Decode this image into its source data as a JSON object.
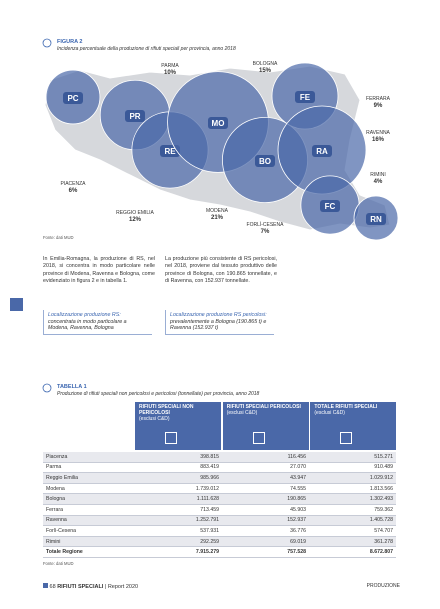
{
  "figure": {
    "label": "FIGURA 2",
    "title": "Incidenza percentuale della produzione di rifiuti speciali per provincia, anno 2018",
    "provinces": [
      {
        "code": "PC",
        "name": "PIACENZA",
        "pct": "6%"
      },
      {
        "code": "PR",
        "name": "PARMA",
        "pct": "10%"
      },
      {
        "code": "RE",
        "name": "REGGIO EMILIA",
        "pct": "12%"
      },
      {
        "code": "MO",
        "name": "MODENA",
        "pct": "21%"
      },
      {
        "code": "BO",
        "name": "BOLOGNA",
        "pct": "15%"
      },
      {
        "code": "FE",
        "name": "FERRARA",
        "pct": "9%"
      },
      {
        "code": "RA",
        "name": "RAVENNA",
        "pct": "16%"
      },
      {
        "code": "FC",
        "name": "FORLÌ-CESENA",
        "pct": "7%"
      },
      {
        "code": "RN",
        "name": "RIMINI",
        "pct": "4%"
      }
    ],
    "source": "Fonte: dati MUD"
  },
  "text": {
    "left": "In Emilia-Romagna, la produzione di RS, nel 2018, si concentra in modo particolare nelle province di Modena, Ravenna e Bologna, come evidenziato in figura 2 e in tabella 1.",
    "right": "La produzione più consistente di RS pericolosi, nel 2018, proviene dal tessuto produttivo delle province di Bologna, con 190.865 tonnellate, e di Ravenna, con 152.937 tonnellate."
  },
  "boxes": [
    {
      "title": "Localizzazione produzione RS:",
      "body": "concentrata in modo particolare a Modena, Ravenna, Bologna"
    },
    {
      "title": "Localizzazione produzione RS pericolosi:",
      "body": "prevalentemente a Bologna (190.865 t) e Ravenna (152.937 t)"
    }
  ],
  "table": {
    "label": "TABELLA 1",
    "title": "Produzione di rifiuti speciali non pericolosi e pericolosi (tonnellate) per provincia, anno 2018",
    "columns": [
      {
        "title": "RIFIUTI SPECIALI NON PERICOLOSI",
        "note": "(esclusi C&D)"
      },
      {
        "title": "RIFIUTI SPECIALI PERICOLOSI",
        "note": "(esclusi C&D)"
      },
      {
        "title": "TOTALE RIFIUTI SPECIALI",
        "note": "(esclusi C&D)"
      }
    ],
    "rows": [
      [
        "Piacenza",
        "398.815",
        "116.456",
        "515.271"
      ],
      [
        "Parma",
        "883.419",
        "27.070",
        "910.489"
      ],
      [
        "Reggio Emilia",
        "985.966",
        "43.947",
        "1.029.912"
      ],
      [
        "Modena",
        "1.739.012",
        "74.555",
        "1.813.566"
      ],
      [
        "Bologna",
        "1.111.628",
        "190.865",
        "1.302.493"
      ],
      [
        "Ferrara",
        "713.459",
        "45.903",
        "759.362"
      ],
      [
        "Ravenna",
        "1.252.791",
        "152.937",
        "1.405.728"
      ],
      [
        "Forlì-Cesena",
        "537.931",
        "36.776",
        "574.707"
      ],
      [
        "Rimini",
        "292.259",
        "69.019",
        "361.278"
      ],
      [
        "Totale Regione",
        "7.915.279",
        "757.528",
        "8.672.807"
      ]
    ],
    "source": "Fonte: dati MUD"
  },
  "footer": {
    "page": "68",
    "publication": "RIFIUTI SPECIALI",
    "report": "| Report 2020",
    "section": "PRODUZIONE"
  }
}
